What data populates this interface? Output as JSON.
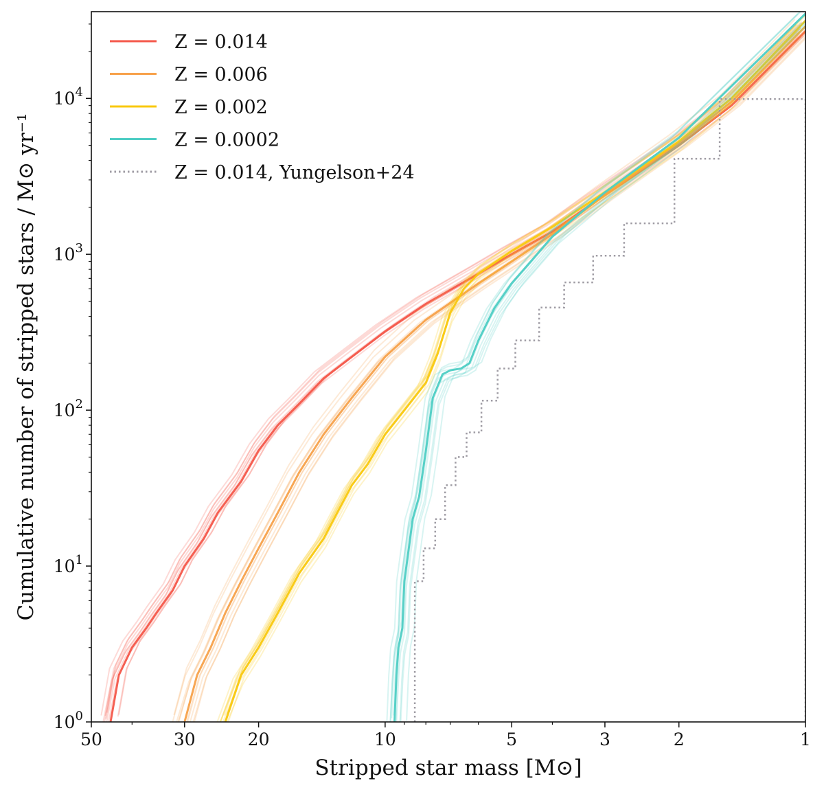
{
  "chart_data": {
    "type": "line",
    "xlabel": "Stripped star mass [M⊙]",
    "ylabel": "Cumulative number of stripped stars / M⊙ yr⁻¹",
    "xscale": "log",
    "yscale": "log",
    "x_reversed": true,
    "xlim": [
      50,
      1
    ],
    "ylim": [
      1,
      36000
    ],
    "x_ticks": [
      {
        "value": 50,
        "label": "50"
      },
      {
        "value": 30,
        "label": "30"
      },
      {
        "value": 20,
        "label": "20"
      },
      {
        "value": 10,
        "label": "10"
      },
      {
        "value": 5,
        "label": "5"
      },
      {
        "value": 3,
        "label": "3"
      },
      {
        "value": 2,
        "label": "2"
      },
      {
        "value": 1,
        "label": "1"
      }
    ],
    "y_ticks": [
      {
        "value": 1,
        "base": "10",
        "exp": "0"
      },
      {
        "value": 10,
        "base": "10",
        "exp": "1"
      },
      {
        "value": 100,
        "base": "10",
        "exp": "2"
      },
      {
        "value": 1000,
        "base": "10",
        "exp": "3"
      },
      {
        "value": 10000,
        "base": "10",
        "exp": "4"
      }
    ],
    "grid": false,
    "legend_position": "top-left",
    "series": [
      {
        "name": "Z = 0.014",
        "color": "#f4574a",
        "style": "solid",
        "points": [
          [
            45,
            1
          ],
          [
            43,
            2
          ],
          [
            40,
            3
          ],
          [
            37,
            4
          ],
          [
            35,
            5
          ],
          [
            32,
            7
          ],
          [
            30,
            10
          ],
          [
            27,
            15
          ],
          [
            25,
            22
          ],
          [
            22,
            35
          ],
          [
            20,
            55
          ],
          [
            18,
            80
          ],
          [
            16,
            110
          ],
          [
            14,
            160
          ],
          [
            12,
            220
          ],
          [
            10,
            320
          ],
          [
            8,
            480
          ],
          [
            6,
            750
          ],
          [
            5,
            1000
          ],
          [
            4,
            1400
          ],
          [
            3,
            2400
          ],
          [
            2,
            5000
          ],
          [
            1.5,
            9000
          ],
          [
            1,
            27000
          ]
        ]
      },
      {
        "name": "Z = 0.006",
        "color": "#f7a14a",
        "style": "solid",
        "points": [
          [
            30,
            1
          ],
          [
            28,
            2
          ],
          [
            26,
            3
          ],
          [
            24,
            5
          ],
          [
            22,
            8
          ],
          [
            20,
            13
          ],
          [
            18,
            22
          ],
          [
            16,
            40
          ],
          [
            14,
            70
          ],
          [
            12,
            120
          ],
          [
            10,
            220
          ],
          [
            8,
            380
          ],
          [
            6,
            650
          ],
          [
            5,
            900
          ],
          [
            4,
            1350
          ],
          [
            3,
            2400
          ],
          [
            2,
            5200
          ],
          [
            1.5,
            9500
          ],
          [
            1,
            29000
          ]
        ]
      },
      {
        "name": "Z = 0.002",
        "color": "#f9c80e",
        "style": "solid",
        "points": [
          [
            24,
            1
          ],
          [
            22,
            2
          ],
          [
            20,
            3
          ],
          [
            18,
            5
          ],
          [
            16,
            9
          ],
          [
            14,
            15
          ],
          [
            13,
            22
          ],
          [
            12,
            33
          ],
          [
            11,
            45
          ],
          [
            10,
            70
          ],
          [
            9,
            100
          ],
          [
            8,
            150
          ],
          [
            7.5,
            230
          ],
          [
            7,
            420
          ],
          [
            6.5,
            600
          ],
          [
            6,
            750
          ],
          [
            5,
            1050
          ],
          [
            4,
            1500
          ],
          [
            3,
            2500
          ],
          [
            2,
            5300
          ],
          [
            1.5,
            10000
          ],
          [
            1,
            31500
          ]
        ]
      },
      {
        "name": "Z = 0.0002",
        "color": "#4ecdc4",
        "style": "solid",
        "points": [
          [
            9.5,
            1
          ],
          [
            9.4,
            2
          ],
          [
            9.3,
            3
          ],
          [
            9.1,
            4
          ],
          [
            9,
            8
          ],
          [
            8.6,
            20
          ],
          [
            8.3,
            28
          ],
          [
            8,
            55
          ],
          [
            7.7,
            120
          ],
          [
            7.3,
            170
          ],
          [
            7,
            180
          ],
          [
            6.6,
            185
          ],
          [
            6.3,
            200
          ],
          [
            6,
            280
          ],
          [
            5.5,
            450
          ],
          [
            5,
            650
          ],
          [
            4.5,
            900
          ],
          [
            4,
            1300
          ],
          [
            3,
            2500
          ],
          [
            2,
            5600
          ],
          [
            1.5,
            12000
          ],
          [
            1,
            35000
          ]
        ]
      },
      {
        "name": "Z = 0.014, Yungelson+24",
        "color": "#9e9ba3",
        "style": "dotted",
        "steps": [
          [
            8.5,
            1
          ],
          [
            8.5,
            8
          ],
          [
            8.1,
            8
          ],
          [
            8.1,
            13
          ],
          [
            7.6,
            13
          ],
          [
            7.6,
            20
          ],
          [
            7.2,
            20
          ],
          [
            7.2,
            33
          ],
          [
            6.8,
            33
          ],
          [
            6.8,
            50
          ],
          [
            6.4,
            50
          ],
          [
            6.4,
            72
          ],
          [
            5.9,
            72
          ],
          [
            5.9,
            115
          ],
          [
            5.4,
            115
          ],
          [
            5.4,
            185
          ],
          [
            4.9,
            185
          ],
          [
            4.9,
            280
          ],
          [
            4.3,
            280
          ],
          [
            4.3,
            455
          ],
          [
            3.75,
            455
          ],
          [
            3.75,
            660
          ],
          [
            3.2,
            660
          ],
          [
            3.2,
            980
          ],
          [
            2.7,
            980
          ],
          [
            2.7,
            1580
          ],
          [
            2.05,
            1580
          ],
          [
            2.05,
            4100
          ],
          [
            1.6,
            4100
          ],
          [
            1.6,
            9900
          ],
          [
            1,
            9900
          ],
          [
            1,
            1
          ]
        ]
      }
    ]
  }
}
